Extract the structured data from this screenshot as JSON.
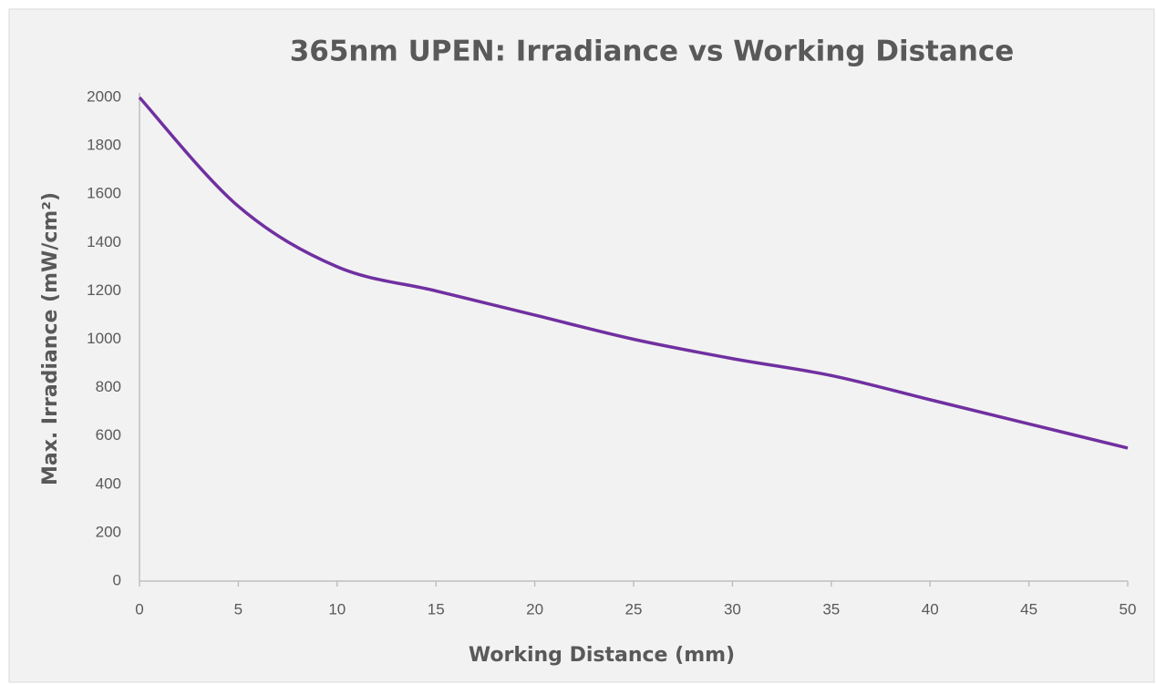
{
  "chart_data": {
    "type": "line",
    "title": "365nm UPEN: Irradiance vs Working Distance",
    "x_label": "Working Distance (mm)",
    "y_label": "Max. Irradiance (mW/cm²)",
    "x": [
      0,
      5,
      10,
      15,
      20,
      25,
      30,
      35,
      40,
      45,
      50
    ],
    "series": [
      {
        "name": "Max. Irradiance",
        "color": "#7030a0",
        "values": [
          2000,
          1550,
          1300,
          1200,
          1100,
          1000,
          920,
          850,
          750,
          650,
          550
        ]
      }
    ],
    "xlim": [
      0,
      50
    ],
    "xticks": [
      0,
      5,
      10,
      15,
      20,
      25,
      30,
      35,
      40,
      45,
      50
    ],
    "ylim": [
      0,
      2000
    ],
    "yticks": [
      0,
      200,
      400,
      600,
      800,
      1000,
      1200,
      1400,
      1600,
      1800,
      2000
    ],
    "grid": false
  }
}
